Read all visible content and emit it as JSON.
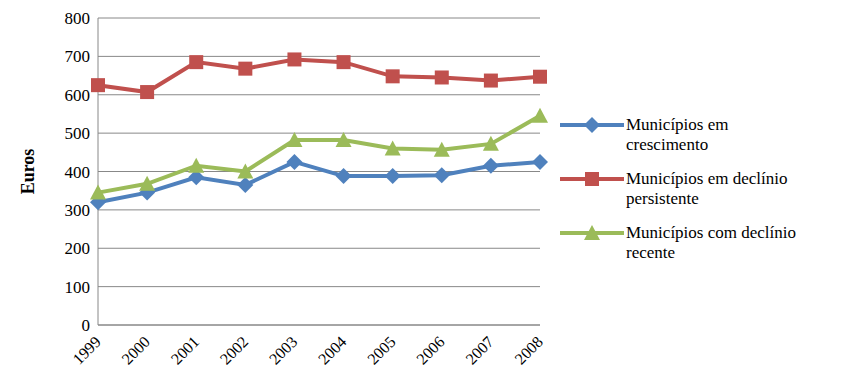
{
  "chart_data": {
    "type": "line",
    "y_label": "Euros",
    "categories": [
      "1999",
      "2000",
      "2001",
      "2002",
      "2003",
      "2004",
      "2005",
      "2006",
      "2007",
      "2008"
    ],
    "series": [
      {
        "name": "Municípios em crescimento",
        "color": "#4F81BD",
        "marker": "diamond",
        "values": [
          320,
          345,
          385,
          365,
          425,
          388,
          388,
          390,
          415,
          425
        ]
      },
      {
        "name": "Municípios em declínio persistente",
        "color": "#C0504D",
        "marker": "square",
        "values": [
          625,
          607,
          685,
          668,
          692,
          685,
          648,
          645,
          637,
          647
        ]
      },
      {
        "name": "Municípios com declínio recente",
        "color": "#9BBB59",
        "marker": "triangle",
        "values": [
          345,
          368,
          415,
          400,
          482,
          482,
          460,
          457,
          472,
          545
        ]
      }
    ],
    "ylim": [
      0,
      800
    ],
    "yticks": [
      0,
      100,
      200,
      300,
      400,
      500,
      600,
      700,
      800
    ],
    "grid": true,
    "legend": "right"
  }
}
